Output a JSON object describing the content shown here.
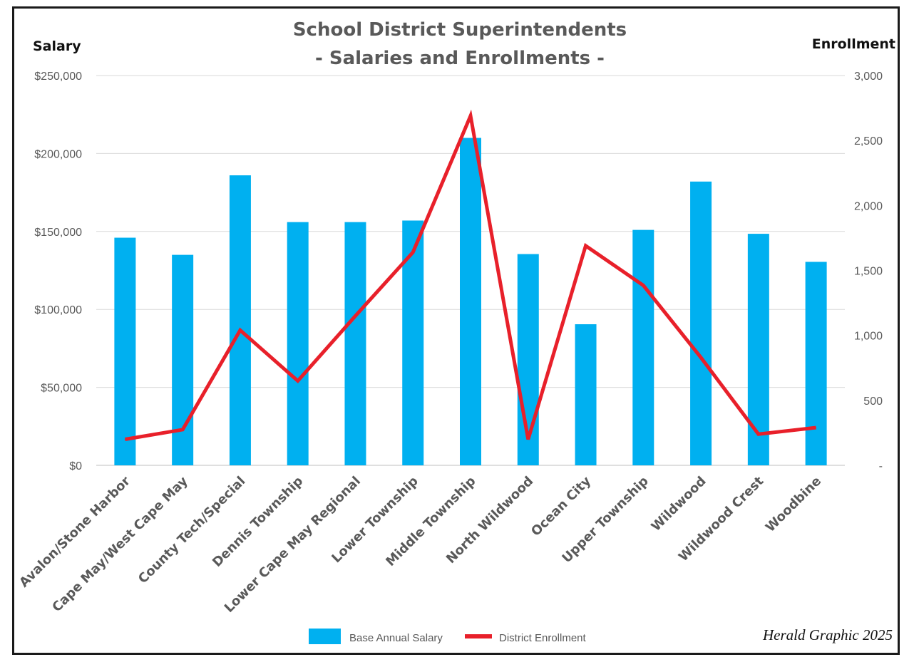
{
  "chart_data": {
    "type": "bar",
    "title": "School District Superintendents",
    "subtitle": "- Salaries and Enrollments -",
    "left_axis_title": "Salary",
    "right_axis_title": "Enrollment",
    "credit": "Herald Graphic 2025",
    "categories": [
      "Avalon/Stone Harbor",
      "Cape May/West Cape May",
      "County Tech/Special",
      "Dennis Township",
      "Lower Cape May Regional",
      "Lower Township",
      "Middle Township",
      "North Wildwood",
      "Ocean City",
      "Upper Township",
      "Wildwood",
      "Wildwood Crest",
      "Woodbine"
    ],
    "series": [
      {
        "name": "Base Annual Salary",
        "type": "bar",
        "axis": "left",
        "color": "#00b0f0",
        "values": [
          146000,
          135000,
          186000,
          156000,
          156000,
          157000,
          210000,
          135500,
          90500,
          151000,
          182000,
          148500,
          130500
        ]
      },
      {
        "name": "District Enrollment",
        "type": "line",
        "axis": "right",
        "color": "#e8202a",
        "values": [
          200,
          275,
          1040,
          650,
          1150,
          1640,
          2690,
          200,
          1690,
          1385,
          830,
          240,
          290
        ]
      }
    ],
    "left_axis": {
      "min": 0,
      "max": 250000,
      "ticks": [
        "$0",
        "$50,000",
        "$100,000",
        "$150,000",
        "$200,000",
        "$250,000"
      ]
    },
    "right_axis": {
      "min": 0,
      "max": 3000,
      "ticks": [
        "-",
        "500",
        "1,000",
        "1,500",
        "2,000",
        "2,500",
        "3,000"
      ]
    },
    "grid": true,
    "legend_position": "bottom"
  }
}
